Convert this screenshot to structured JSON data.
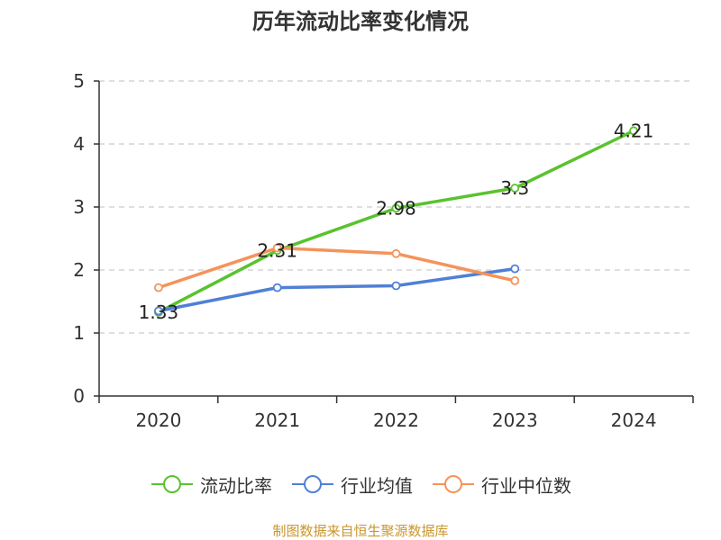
{
  "title": "历年流动比率变化情况",
  "source": "制图数据来自恒生聚源数据库",
  "chart_data": {
    "type": "line",
    "title": "历年流动比率变化情况",
    "categories": [
      "2020",
      "2021",
      "2022",
      "2023",
      "2024"
    ],
    "ylim": [
      0,
      5
    ],
    "yticks": [
      0,
      1,
      2,
      3,
      4,
      5
    ],
    "grid": true,
    "legend_position": "bottom",
    "series": [
      {
        "name": "流动比率",
        "color": "#5ac22e",
        "values": [
          1.33,
          2.31,
          2.98,
          3.3,
          4.21
        ],
        "labels": [
          "1.33",
          "2.31",
          "2.98",
          "3.3",
          "4.21"
        ]
      },
      {
        "name": "行业均值",
        "color": "#4f80d6",
        "values": [
          1.35,
          1.72,
          1.75,
          2.02,
          null
        ]
      },
      {
        "name": "行业中位数",
        "color": "#f5935a",
        "values": [
          1.72,
          2.35,
          2.26,
          1.83,
          null
        ]
      }
    ]
  }
}
